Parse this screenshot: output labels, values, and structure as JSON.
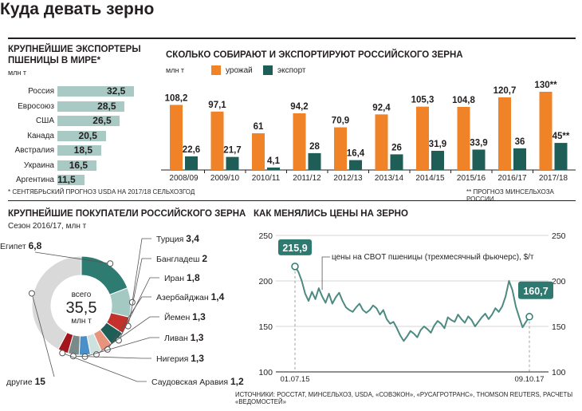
{
  "title": "Куда девать зерно",
  "colors": {
    "harvest": "#f08227",
    "export": "#1f5e57",
    "exporters_bar": "#a9cac4",
    "price_line": "#4d8a82",
    "accent_dark": "#2f7a70"
  },
  "exporters": {
    "title_line1": "КРУПНЕЙШИЕ ЭКСПОРТЕРЫ",
    "title_line2": "ПШЕНИЦЫ В МИРЕ*",
    "unit": "млн т",
    "footnote": "* СЕНТЯБРЬСКИЙ ПРОГНОЗ USDA НА 2017/18 СЕЛЬХОЗГОД",
    "items": [
      {
        "country": "Россия",
        "value": 32.5,
        "label": "32,5"
      },
      {
        "country": "Евросоюз",
        "value": 28.5,
        "label": "28,5"
      },
      {
        "country": "США",
        "value": 26.5,
        "label": "26,5"
      },
      {
        "country": "Канада",
        "value": 20.5,
        "label": "20,5"
      },
      {
        "country": "Австралия",
        "value": 18.5,
        "label": "18,5"
      },
      {
        "country": "Украина",
        "value": 16.5,
        "label": "16,5"
      },
      {
        "country": "Аргентина",
        "value": 11.5,
        "label": "11,5"
      }
    ]
  },
  "harvest": {
    "title": "СКОЛЬКО СОБИРАЮТ И ЭКСПОРТИРУЮТ РОССИЙСКОГО ЗЕРНА",
    "unit": "млн т",
    "legend_harvest": "урожай",
    "legend_export": "экспорт",
    "footnote": "** ПРОГНОЗ МИНСЕЛЬХОЗА РОССИИ"
  },
  "buyers": {
    "title": "КРУПНЕЙШИЕ ПОКУПАТЕЛИ РОССИЙСКОГО ЗЕРНА",
    "subtitle": "Сезон 2016/17, млн т",
    "center_line1": "всего",
    "center_value": "35,5",
    "center_line2": "млн т"
  },
  "prices": {
    "title": "КАК МЕНЯЛИСЬ ЦЕНЫ НА ЗЕРНО",
    "series_label": "цены на CBOT пшеницы (трехмесячный фьючерс), $/т",
    "start_label": "215,9",
    "end_label": "160,7",
    "date_start": "01.07.15",
    "date_end": "09.10.17"
  },
  "sources": "ИСТОЧНИКИ: РОССТАТ, МИНСЕЛЬХОЗ, USDA, «СОВЭКОН», «РУСАГРОТРАНС», THOMSON REUTERS, РАСЧЕТЫ «ВЕДОМОСТЕЙ»",
  "chart_data": [
    {
      "type": "bar",
      "title": "КРУПНЕЙШИЕ ЭКСПОРТЕРЫ ПШЕНИЦЫ В МИРЕ*",
      "orientation": "horizontal",
      "unit": "млн т",
      "categories": [
        "Россия",
        "Евросоюз",
        "США",
        "Канада",
        "Австралия",
        "Украина",
        "Аргентина"
      ],
      "values": [
        32.5,
        28.5,
        26.5,
        20.5,
        18.5,
        16.5,
        11.5
      ]
    },
    {
      "type": "bar",
      "title": "СКОЛЬКО СОБИРАЮТ И ЭКСПОРТИРУЮТ РОССИЙСКОГО ЗЕРНА",
      "unit": "млн т",
      "categories": [
        "2008/09",
        "2009/10",
        "2010/11",
        "2011/12",
        "2012/13",
        "2013/14",
        "2014/15",
        "2015/16",
        "2016/17",
        "2017/18"
      ],
      "series": [
        {
          "name": "урожай",
          "values": [
            108.2,
            97.1,
            61,
            94.2,
            70.9,
            92.4,
            105.3,
            104.8,
            120.7,
            130
          ],
          "labels": [
            "108,2",
            "97,1",
            "61",
            "94,2",
            "70,9",
            "92,4",
            "105,3",
            "104,8",
            "120,7",
            "130**"
          ]
        },
        {
          "name": "экспорт",
          "values": [
            22.6,
            21.7,
            4.1,
            28,
            16.4,
            26,
            31.9,
            33.9,
            36,
            45
          ],
          "labels": [
            "22,6",
            "21,7",
            "4,1",
            "28",
            "16,4",
            "26",
            "31,9",
            "33,9",
            "36",
            "45**"
          ]
        }
      ],
      "ylim": [
        0,
        130
      ]
    },
    {
      "type": "pie",
      "title": "КРУПНЕЙШИЕ ПОКУПАТЕЛИ РОССИЙСКОГО ЗЕРНА",
      "subtitle": "Сезон 2016/17, млн т",
      "total": 35.5,
      "slices": [
        {
          "name": "Египет",
          "value": 6.8,
          "label": "6,8",
          "color": "#2e7b72"
        },
        {
          "name": "Турция",
          "value": 3.4,
          "label": "3,4",
          "color": "#a4c8c2"
        },
        {
          "name": "Бангладеш",
          "value": 2,
          "label": "2",
          "color": "#c4302b"
        },
        {
          "name": "Иран",
          "value": 1.8,
          "label": "1,8",
          "color": "#1f5e57"
        },
        {
          "name": "Азербайджан",
          "value": 1.4,
          "label": "1,4",
          "color": "#e8937c"
        },
        {
          "name": "Йемен",
          "value": 1.3,
          "label": "1,3",
          "color": "#cde2de"
        },
        {
          "name": "Ливан",
          "value": 1.3,
          "label": "1,3",
          "color": "#4a8fc8"
        },
        {
          "name": "Нигерия",
          "value": 1.3,
          "label": "1,3",
          "color": "#7a8a88"
        },
        {
          "name": "Саудовская Аравия",
          "value": 1.2,
          "label": "1,2",
          "color": "#a3171c"
        },
        {
          "name": "другие",
          "value": 15,
          "label": "15",
          "color": "#d9d9d9"
        }
      ]
    },
    {
      "type": "line",
      "title": "КАК МЕНЯЛИСЬ ЦЕНЫ НА ЗЕРНО",
      "ylabel": "$/т",
      "ylim": [
        100,
        250
      ],
      "yticks": [
        100,
        150,
        200,
        250
      ],
      "x_start": "01.07.15",
      "x_end": "09.10.17",
      "series": [
        {
          "name": "цены на CBOT пшеницы (трехмесячный фьючерс), $/т",
          "values": [
            215.9,
            210,
            200,
            186,
            178,
            188,
            180,
            192,
            183,
            176,
            186,
            175,
            182,
            187,
            178,
            171,
            168,
            166,
            171,
            175,
            168,
            165,
            168,
            173,
            170,
            163,
            168,
            158,
            153,
            155,
            148,
            140,
            134,
            139,
            145,
            142,
            138,
            146,
            150,
            147,
            143,
            151,
            156,
            153,
            148,
            160,
            157,
            155,
            163,
            158,
            154,
            161,
            157,
            150,
            155,
            160,
            164,
            158,
            163,
            170,
            166,
            172,
            183,
            200,
            190,
            172,
            160,
            149,
            155,
            160.7
          ]
        }
      ]
    }
  ]
}
